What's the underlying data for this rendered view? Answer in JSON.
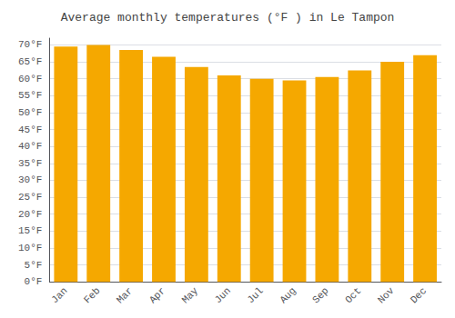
{
  "chart_data": {
    "type": "bar",
    "title": "Average monthly temperatures (°F ) in Le Tampon",
    "categories": [
      "Jan",
      "Feb",
      "Mar",
      "Apr",
      "May",
      "Jun",
      "Jul",
      "Aug",
      "Sep",
      "Oct",
      "Nov",
      "Dec"
    ],
    "values": [
      69.5,
      70.0,
      68.5,
      66.5,
      63.5,
      61.0,
      60.0,
      59.5,
      60.5,
      62.5,
      65.0,
      67.0
    ],
    "color": "#F5A800",
    "ylim": [
      0,
      72
    ],
    "yticks": [
      {
        "value": 0,
        "label": "0°F"
      },
      {
        "value": 5,
        "label": "5°F"
      },
      {
        "value": 10,
        "label": "10°F"
      },
      {
        "value": 15,
        "label": "15°F"
      },
      {
        "value": 20,
        "label": "20°F"
      },
      {
        "value": 25,
        "label": "25°F"
      },
      {
        "value": 30,
        "label": "30°F"
      },
      {
        "value": 35,
        "label": "35°F"
      },
      {
        "value": 40,
        "label": "40°F"
      },
      {
        "value": 45,
        "label": "45°F"
      },
      {
        "value": 50,
        "label": "50°F"
      },
      {
        "value": 55,
        "label": "55°F"
      },
      {
        "value": 60,
        "label": "60°F"
      },
      {
        "value": 65,
        "label": "65°F"
      },
      {
        "value": 70,
        "label": "70°F"
      }
    ],
    "grid": true
  }
}
